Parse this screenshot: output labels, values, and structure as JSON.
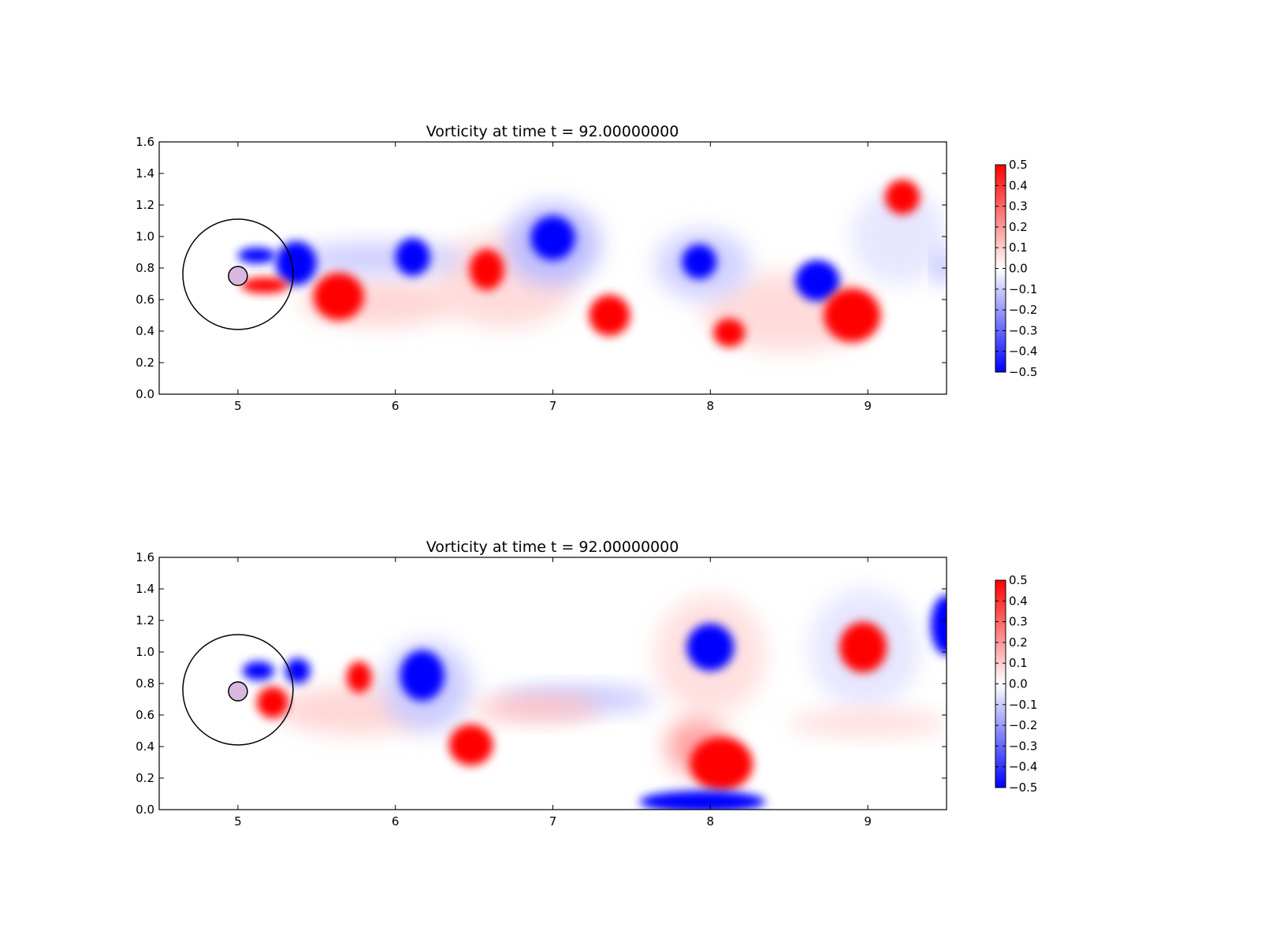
{
  "chart_data": [
    {
      "type": "heatmap",
      "title": "Vorticity at time t =    92.00000000",
      "xlabel": "",
      "ylabel": "",
      "xlim": [
        4.5,
        9.5
      ],
      "ylim": [
        0.0,
        1.6
      ],
      "x_ticks": [
        "5",
        "6",
        "7",
        "8",
        "9"
      ],
      "y_ticks": [
        "0.0",
        "0.2",
        "0.4",
        "0.6",
        "0.8",
        "1.0",
        "1.2",
        "1.4",
        "1.6"
      ],
      "colorbar": {
        "range": [
          -0.5,
          0.5
        ],
        "ticks": [
          "0.5",
          "0.4",
          "0.3",
          "0.2",
          "0.1",
          "0.0",
          "−0.1",
          "−0.2",
          "−0.3",
          "−0.4",
          "−0.5"
        ],
        "low_color": "#0000ff",
        "mid_color": "#ffffff",
        "high_color": "#ff0000"
      },
      "cylinder": {
        "cx": 5.0,
        "cy": 0.75,
        "r": 0.06
      },
      "outer_circle": {
        "cx": 5.0,
        "cy": 0.76,
        "r": 0.35
      },
      "vortices": [
        {
          "x": 5.37,
          "y": 0.83,
          "rx": 0.13,
          "ry": 0.14,
          "value": -0.5
        },
        {
          "x": 5.64,
          "y": 0.62,
          "rx": 0.16,
          "ry": 0.15,
          "value": 0.5
        },
        {
          "x": 5.17,
          "y": 0.69,
          "rx": 0.15,
          "ry": 0.05,
          "value": 0.5
        },
        {
          "x": 5.12,
          "y": 0.88,
          "rx": 0.12,
          "ry": 0.05,
          "value": -0.5
        },
        {
          "x": 6.11,
          "y": 0.87,
          "rx": 0.11,
          "ry": 0.12,
          "value": -0.5
        },
        {
          "x": 6.58,
          "y": 0.79,
          "rx": 0.11,
          "ry": 0.13,
          "value": 0.5
        },
        {
          "x": 7.0,
          "y": 0.99,
          "rx": 0.14,
          "ry": 0.14,
          "value": -0.5
        },
        {
          "x": 7.36,
          "y": 0.5,
          "rx": 0.13,
          "ry": 0.13,
          "value": 0.5
        },
        {
          "x": 7.93,
          "y": 0.84,
          "rx": 0.11,
          "ry": 0.11,
          "value": -0.5
        },
        {
          "x": 8.12,
          "y": 0.39,
          "rx": 0.1,
          "ry": 0.09,
          "value": 0.5
        },
        {
          "x": 8.68,
          "y": 0.72,
          "rx": 0.14,
          "ry": 0.13,
          "value": -0.5
        },
        {
          "x": 8.9,
          "y": 0.5,
          "rx": 0.18,
          "ry": 0.17,
          "value": 0.5
        },
        {
          "x": 9.22,
          "y": 1.25,
          "rx": 0.11,
          "ry": 0.11,
          "value": 0.5
        },
        {
          "x": 9.48,
          "y": 0.8,
          "rx": 0.05,
          "ry": 0.1,
          "value": -0.18
        },
        {
          "x": 7.0,
          "y": 0.95,
          "rx": 0.3,
          "ry": 0.26,
          "value": -0.13
        },
        {
          "x": 6.7,
          "y": 0.72,
          "rx": 0.45,
          "ry": 0.3,
          "value": 0.07
        },
        {
          "x": 5.9,
          "y": 0.86,
          "rx": 0.55,
          "ry": 0.1,
          "value": -0.1
        },
        {
          "x": 5.9,
          "y": 0.58,
          "rx": 0.5,
          "ry": 0.15,
          "value": 0.08
        },
        {
          "x": 7.95,
          "y": 0.82,
          "rx": 0.3,
          "ry": 0.22,
          "value": -0.09
        },
        {
          "x": 8.5,
          "y": 0.52,
          "rx": 0.55,
          "ry": 0.25,
          "value": 0.07
        },
        {
          "x": 9.2,
          "y": 1.0,
          "rx": 0.3,
          "ry": 0.3,
          "value": -0.05
        }
      ]
    },
    {
      "type": "heatmap",
      "title": "Vorticity at time t =    92.00000000",
      "xlabel": "",
      "ylabel": "",
      "xlim": [
        4.5,
        9.5
      ],
      "ylim": [
        0.0,
        1.6
      ],
      "x_ticks": [
        "5",
        "6",
        "7",
        "8",
        "9"
      ],
      "y_ticks": [
        "0.0",
        "0.2",
        "0.4",
        "0.6",
        "0.8",
        "1.0",
        "1.2",
        "1.4",
        "1.6"
      ],
      "colorbar": {
        "range": [
          -0.5,
          0.5
        ],
        "ticks": [
          "0.5",
          "0.4",
          "0.3",
          "0.2",
          "0.1",
          "0.0",
          "−0.1",
          "−0.2",
          "−0.3",
          "−0.4",
          "−0.5"
        ],
        "low_color": "#0000ff",
        "mid_color": "#ffffff",
        "high_color": "#ff0000"
      },
      "cylinder": {
        "cx": 5.0,
        "cy": 0.75,
        "r": 0.06
      },
      "outer_circle": {
        "cx": 5.0,
        "cy": 0.76,
        "r": 0.35
      },
      "vortices": [
        {
          "x": 5.38,
          "y": 0.88,
          "rx": 0.08,
          "ry": 0.08,
          "value": -0.5
        },
        {
          "x": 5.22,
          "y": 0.68,
          "rx": 0.1,
          "ry": 0.1,
          "value": 0.5
        },
        {
          "x": 5.13,
          "y": 0.88,
          "rx": 0.1,
          "ry": 0.06,
          "value": -0.5
        },
        {
          "x": 5.77,
          "y": 0.84,
          "rx": 0.08,
          "ry": 0.1,
          "value": 0.5
        },
        {
          "x": 6.17,
          "y": 0.85,
          "rx": 0.14,
          "ry": 0.16,
          "value": -0.5
        },
        {
          "x": 6.48,
          "y": 0.41,
          "rx": 0.14,
          "ry": 0.13,
          "value": 0.5
        },
        {
          "x": 8.0,
          "y": 1.03,
          "rx": 0.15,
          "ry": 0.15,
          "value": -0.5
        },
        {
          "x": 8.07,
          "y": 0.29,
          "rx": 0.2,
          "ry": 0.17,
          "value": 0.5
        },
        {
          "x": 7.95,
          "y": 0.05,
          "rx": 0.4,
          "ry": 0.07,
          "value": -0.5
        },
        {
          "x": 8.97,
          "y": 1.03,
          "rx": 0.15,
          "ry": 0.16,
          "value": 0.5
        },
        {
          "x": 9.5,
          "y": 1.17,
          "rx": 0.1,
          "ry": 0.19,
          "value": -0.5
        },
        {
          "x": 7.15,
          "y": 0.7,
          "rx": 0.5,
          "ry": 0.08,
          "value": -0.12
        },
        {
          "x": 6.9,
          "y": 0.64,
          "rx": 0.4,
          "ry": 0.08,
          "value": 0.12
        },
        {
          "x": 6.2,
          "y": 0.78,
          "rx": 0.28,
          "ry": 0.28,
          "value": -0.1
        },
        {
          "x": 5.75,
          "y": 0.63,
          "rx": 0.5,
          "ry": 0.15,
          "value": 0.08
        },
        {
          "x": 8.0,
          "y": 0.98,
          "rx": 0.35,
          "ry": 0.38,
          "value": 0.06
        },
        {
          "x": 7.92,
          "y": 0.4,
          "rx": 0.2,
          "ry": 0.18,
          "value": 0.18
        },
        {
          "x": 8.98,
          "y": 1.02,
          "rx": 0.35,
          "ry": 0.38,
          "value": -0.05
        },
        {
          "x": 9.0,
          "y": 0.55,
          "rx": 0.5,
          "ry": 0.08,
          "value": 0.07
        }
      ]
    }
  ]
}
